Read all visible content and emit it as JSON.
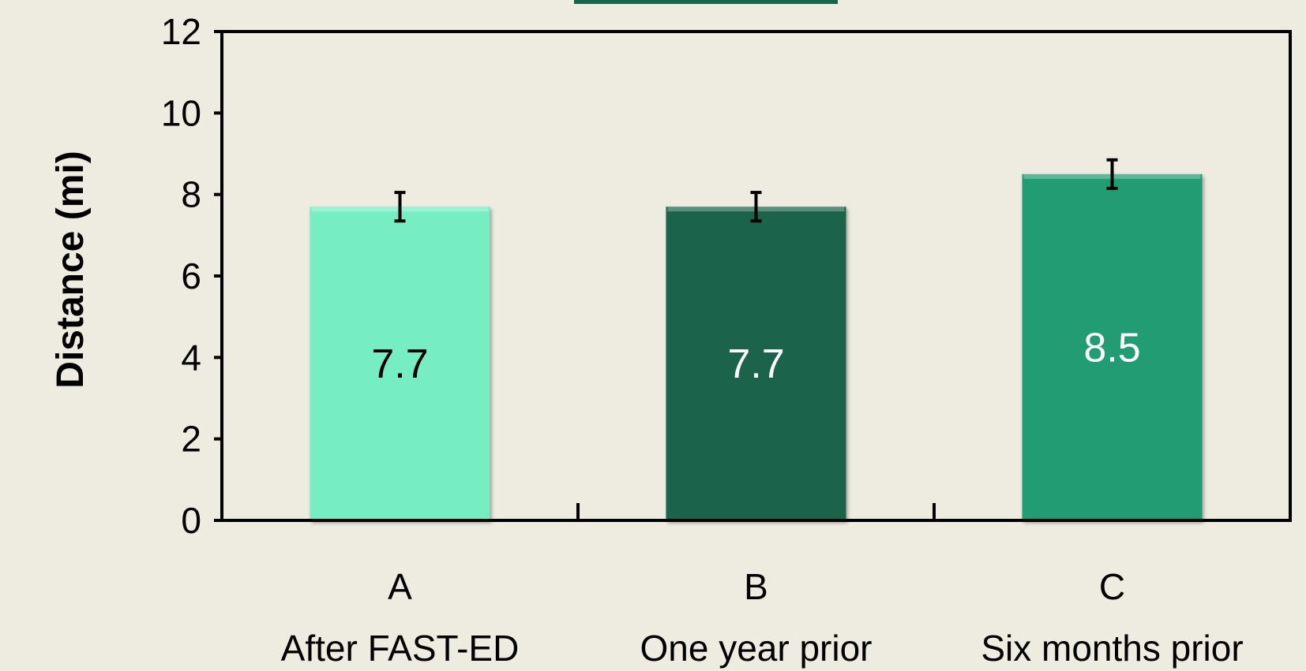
{
  "chart_data": {
    "type": "bar",
    "title": "",
    "xlabel": "",
    "ylabel": "Distance (mi)",
    "ylim": [
      0,
      12
    ],
    "yticks": [
      0,
      2,
      4,
      6,
      8,
      10,
      12
    ],
    "grid": false,
    "legend": "none",
    "categories": [
      {
        "letter": "A",
        "name": "After FAST-ED"
      },
      {
        "letter": "B",
        "name": "One year prior"
      },
      {
        "letter": "C",
        "name": "Six months prior"
      }
    ],
    "values": [
      7.7,
      7.7,
      8.5
    ],
    "value_labels": [
      "7.7",
      "7.7",
      "8.5"
    ],
    "error": [
      0.35,
      0.35,
      0.35
    ],
    "colors": [
      "#77EDC4",
      "#1A634B",
      "#239C72"
    ],
    "value_label_colors": [
      "#000000",
      "#FFFFFF",
      "#FFFFFF"
    ],
    "top_accent_color": "#1A634B"
  }
}
